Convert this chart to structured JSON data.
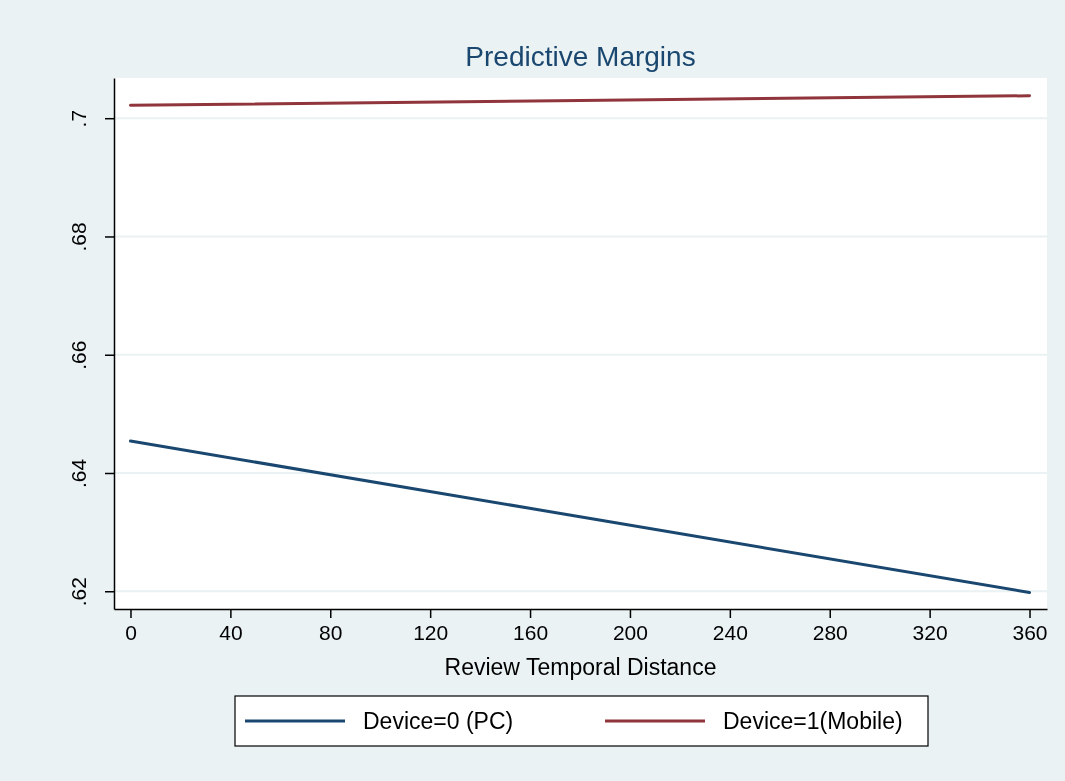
{
  "chart_data": {
    "type": "line",
    "title": "Predictive Margins",
    "xlabel": "Review Temporal Distance",
    "x": [
      0,
      180,
      360
    ],
    "series": [
      {
        "name": "Device=0 (PC)",
        "color": "#1a476f",
        "values": [
          0.6454,
          0.6326,
          0.6198
        ]
      },
      {
        "name": "Device=1(Mobile)",
        "color": "#90353b",
        "values": [
          0.7022,
          0.703,
          0.7038
        ]
      }
    ],
    "xlim": [
      -6.6,
      367
    ],
    "xticks": [
      0,
      40,
      80,
      120,
      160,
      200,
      240,
      280,
      320,
      360
    ],
    "ylim": [
      0.617,
      0.7068
    ],
    "yticks": [
      {
        "value": 0.62,
        "label": ".62"
      },
      {
        "value": 0.64,
        "label": ".64"
      },
      {
        "value": 0.66,
        "label": ".66"
      },
      {
        "value": 0.68,
        "label": ".68"
      },
      {
        "value": 0.7,
        "label": ".7"
      }
    ],
    "grid": "y",
    "legend": "bottom",
    "marker": "none",
    "line_style": "solid"
  }
}
